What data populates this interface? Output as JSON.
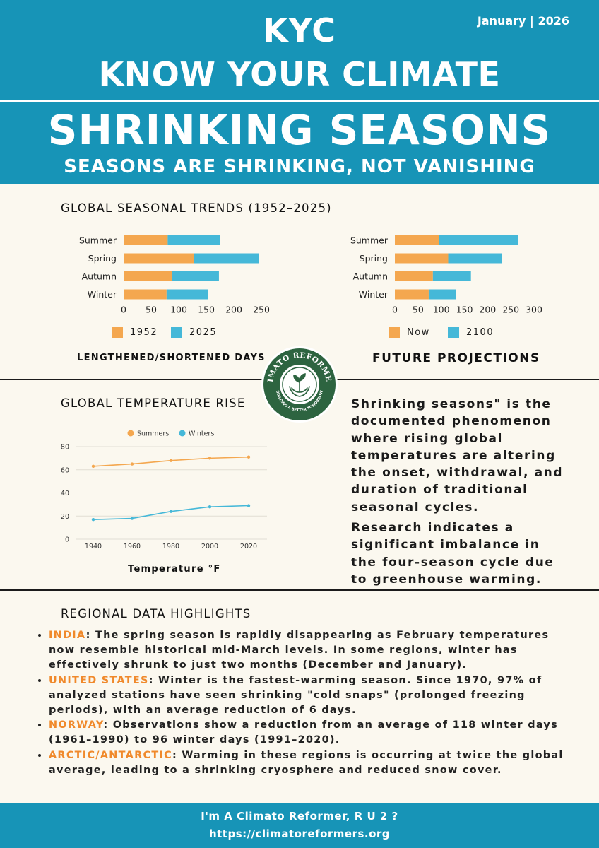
{
  "header": {
    "date": "January | 2026",
    "brand_short": "KYC",
    "brand_full": "KNOW YOUR CLIMATE",
    "title": "SHRINKING SEASONS",
    "subtitle": "SEASONS ARE SHRINKING, NOT VANISHING"
  },
  "trends": {
    "heading": "GLOBAL SEASONAL TRENDS (1952–2025)",
    "left_caption": "LENGTHENED/SHORTENED DAYS",
    "right_caption": "FUTURE PROJECTIONS"
  },
  "colors": {
    "orange": "#f4a74f",
    "blue": "#45b8d8",
    "teal": "#1794b7",
    "logo_green": "#2d6440"
  },
  "chart_data": [
    {
      "type": "bar",
      "orientation": "horizontal",
      "stacked": true,
      "categories": [
        "Summer",
        "Spring",
        "Autumn",
        "Winter"
      ],
      "series": [
        {
          "name": "1952",
          "values": [
            80,
            127,
            88,
            78
          ],
          "color": "#f4a74f"
        },
        {
          "name": "2025",
          "values": [
            95,
            118,
            85,
            75
          ],
          "color": "#45b8d8"
        }
      ],
      "xticks": [
        "0",
        "50",
        "100",
        "150",
        "200",
        "250"
      ],
      "xlim": [
        0,
        250
      ],
      "legend": "bottom"
    },
    {
      "type": "bar",
      "orientation": "horizontal",
      "stacked": true,
      "categories": [
        "Summer",
        "Spring",
        "Autumn",
        "Winter"
      ],
      "series": [
        {
          "name": "Now",
          "values": [
            95,
            115,
            82,
            73
          ],
          "color": "#f4a74f"
        },
        {
          "name": "2100",
          "values": [
            170,
            115,
            82,
            58
          ],
          "color": "#45b8d8"
        }
      ],
      "xticks": [
        "0",
        "50",
        "100",
        "150",
        "200",
        "250",
        "300"
      ],
      "xlim": [
        0,
        300
      ],
      "legend": "bottom"
    },
    {
      "type": "line",
      "title": "GLOBAL TEMPERATURE RISE",
      "xlabel": "Temperature °F",
      "x": [
        "1940",
        "1960",
        "1980",
        "2000",
        "2020"
      ],
      "yticks": [
        "0",
        "20",
        "40",
        "60",
        "80"
      ],
      "ylim": [
        0,
        80
      ],
      "grid": true,
      "legend": "top",
      "series": [
        {
          "name": "Summers",
          "values": [
            63,
            65,
            68,
            70,
            71
          ],
          "color": "#f4a74f"
        },
        {
          "name": "Winters",
          "values": [
            17,
            18,
            24,
            28,
            29
          ],
          "color": "#45b8d8"
        }
      ]
    }
  ],
  "logo": {
    "top_text": "CLIMATO REFORMERS",
    "bottom_text": "BUILDING A BETTER TOMORROW"
  },
  "description": {
    "para1": "Shrinking seasons\" is the documented phenomenon where rising global temperatures are altering the onset, withdrawal, and duration of traditional seasonal cycles.",
    "para2": "Research indicates a significant imbalance in the four-season cycle due to greenhouse warming."
  },
  "regional": {
    "heading": "REGIONAL DATA HIGHLIGHTS",
    "items": [
      {
        "country": "INDIA",
        "text": ": The spring season is rapidly disappearing as February temperatures now resemble historical mid-March levels. In some regions, winter has effectively shrunk to just two months (December and January)."
      },
      {
        "country": "UNITED STATES",
        "text": ": Winter is the fastest-warming season. Since 1970, 97% of analyzed stations have seen shrinking \"cold snaps\" (prolonged freezing periods), with an average reduction of 6 days."
      },
      {
        "country": "NORWAY",
        "text": ": Observations show a reduction from an average of 118 winter days (1961–1990) to 96 winter days (1991–2020)."
      },
      {
        "country": "ARCTIC/ANTARCTIC",
        "text": ": Warming in these regions is occurring at twice the global average, leading to a shrinking cryosphere and reduced snow cover."
      }
    ]
  },
  "footer": {
    "line1": "I'm A Climato Reformer, R U 2 ?",
    "line2": "https://climatoreformers.org"
  }
}
